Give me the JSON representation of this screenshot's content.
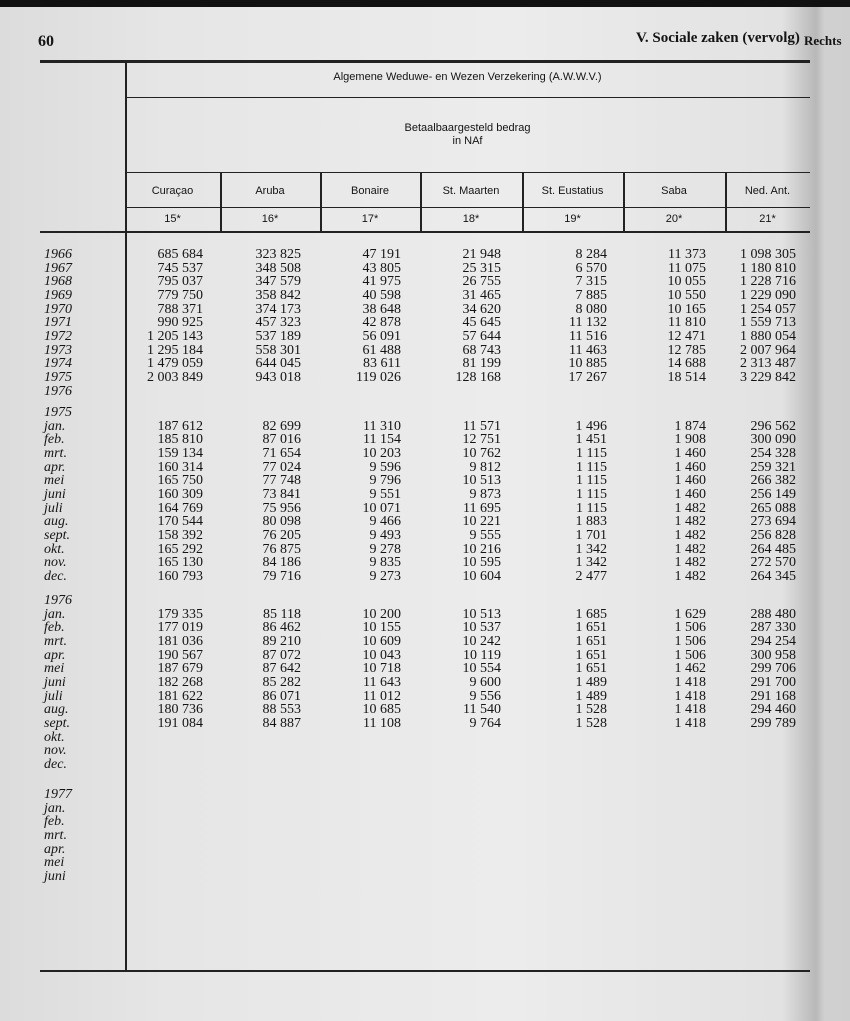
{
  "page_number": "60",
  "running_head": "V. Sociale zaken (vervolg)",
  "next_page_head": "Rechts",
  "table": {
    "title": "Algemene Weduwe- en Wezen Verzekering (A.W.W.V.)",
    "subtitle_line1": "Betaalbaargesteld bedrag",
    "subtitle_line2": "in NAf",
    "columns": [
      {
        "label": "Curaçao",
        "number": "15*"
      },
      {
        "label": "Aruba",
        "number": "16*"
      },
      {
        "label": "Bonaire",
        "number": "17*"
      },
      {
        "label": "St. Maarten",
        "number": "18*"
      },
      {
        "label": "St. Eustatius",
        "number": "19*"
      },
      {
        "label": "Saba",
        "number": "20*"
      },
      {
        "label": "Ned. Ant.",
        "number": "21*"
      }
    ],
    "sections": [
      {
        "heading": "",
        "rows": [
          {
            "label": "1966",
            "values": [
              "685 684",
              "323 825",
              "47 191",
              "21 948",
              "8 284",
              "11 373",
              "1 098 305"
            ]
          },
          {
            "label": "1967",
            "values": [
              "745 537",
              "348 508",
              "43 805",
              "25 315",
              "6 570",
              "11 075",
              "1 180 810"
            ]
          },
          {
            "label": "1968",
            "values": [
              "795 037",
              "347 579",
              "41 975",
              "26 755",
              "7 315",
              "10 055",
              "1 228 716"
            ]
          },
          {
            "label": "1969",
            "values": [
              "779 750",
              "358 842",
              "40 598",
              "31 465",
              "7 885",
              "10 550",
              "1 229 090"
            ]
          },
          {
            "label": "1970",
            "values": [
              "788 371",
              "374 173",
              "38 648",
              "34 620",
              "8 080",
              "10 165",
              "1 254 057"
            ]
          },
          {
            "label": "1971",
            "values": [
              "990 925",
              "457 323",
              "42 878",
              "45 645",
              "11 132",
              "11 810",
              "1 559 713"
            ]
          },
          {
            "label": "1972",
            "values": [
              "1 205 143",
              "537 189",
              "56 091",
              "57 644",
              "11 516",
              "12 471",
              "1 880 054"
            ]
          },
          {
            "label": "1973",
            "values": [
              "1 295 184",
              "558 301",
              "61 488",
              "68 743",
              "11 463",
              "12 785",
              "2 007 964"
            ]
          },
          {
            "label": "1974",
            "values": [
              "1 479 059",
              "644 045",
              "83 611",
              "81 199",
              "10 885",
              "14 688",
              "2 313 487"
            ]
          },
          {
            "label": "1975",
            "values": [
              "2 003 849",
              "943 018",
              "119 026",
              "128 168",
              "17 267",
              "18 514",
              "3 229 842"
            ]
          },
          {
            "label": "1976",
            "values": []
          }
        ]
      },
      {
        "heading": "1975",
        "rows": [
          {
            "label": "jan.",
            "values": [
              "187 612",
              "82 699",
              "11 310",
              "11 571",
              "1 496",
              "1 874",
              "296 562"
            ]
          },
          {
            "label": "feb.",
            "values": [
              "185 810",
              "87 016",
              "11 154",
              "12 751",
              "1 451",
              "1 908",
              "300 090"
            ]
          },
          {
            "label": "mrt.",
            "values": [
              "159 134",
              "71 654",
              "10 203",
              "10 762",
              "1 115",
              "1 460",
              "254 328"
            ]
          },
          {
            "label": "apr.",
            "values": [
              "160 314",
              "77 024",
              "9 596",
              "9 812",
              "1 115",
              "1 460",
              "259 321"
            ]
          },
          {
            "label": "mei",
            "values": [
              "165 750",
              "77 748",
              "9 796",
              "10 513",
              "1 115",
              "1 460",
              "266 382"
            ]
          },
          {
            "label": "juni",
            "values": [
              "160 309",
              "73 841",
              "9 551",
              "9 873",
              "1 115",
              "1 460",
              "256 149"
            ]
          },
          {
            "label": "juli",
            "values": [
              "164 769",
              "75 956",
              "10 071",
              "11 695",
              "1 115",
              "1 482",
              "265 088"
            ]
          },
          {
            "label": "aug.",
            "values": [
              "170 544",
              "80 098",
              "9 466",
              "10 221",
              "1 883",
              "1 482",
              "273 694"
            ]
          },
          {
            "label": "sept.",
            "values": [
              "158 392",
              "76 205",
              "9 493",
              "9 555",
              "1 701",
              "1 482",
              "256 828"
            ]
          },
          {
            "label": "okt.",
            "values": [
              "165 292",
              "76 875",
              "9 278",
              "10 216",
              "1 342",
              "1 482",
              "264 485"
            ]
          },
          {
            "label": "nov.",
            "values": [
              "165 130",
              "84 186",
              "9 835",
              "10 595",
              "1 342",
              "1 482",
              "272 570"
            ]
          },
          {
            "label": "dec.",
            "values": [
              "160 793",
              "79 716",
              "9 273",
              "10 604",
              "2 477",
              "1 482",
              "264 345"
            ]
          }
        ]
      },
      {
        "heading": "1976",
        "rows": [
          {
            "label": "jan.",
            "values": [
              "179 335",
              "85 118",
              "10 200",
              "10 513",
              "1 685",
              "1 629",
              "288 480"
            ]
          },
          {
            "label": "feb.",
            "values": [
              "177 019",
              "86 462",
              "10 155",
              "10 537",
              "1 651",
              "1 506",
              "287 330"
            ]
          },
          {
            "label": "mrt.",
            "values": [
              "181 036",
              "89 210",
              "10 609",
              "10 242",
              "1 651",
              "1 506",
              "294 254"
            ]
          },
          {
            "label": "apr.",
            "values": [
              "190 567",
              "87 072",
              "10 043",
              "10 119",
              "1 651",
              "1 506",
              "300 958"
            ]
          },
          {
            "label": "mei",
            "values": [
              "187 679",
              "87 642",
              "10 718",
              "10 554",
              "1 651",
              "1 462",
              "299 706"
            ]
          },
          {
            "label": "juni",
            "values": [
              "182 268",
              "85 282",
              "11 643",
              "9 600",
              "1 489",
              "1 418",
              "291 700"
            ]
          },
          {
            "label": "juli",
            "values": [
              "181 622",
              "86 071",
              "11 012",
              "9 556",
              "1 489",
              "1 418",
              "291 168"
            ]
          },
          {
            "label": "aug.",
            "values": [
              "180 736",
              "88 553",
              "10 685",
              "11 540",
              "1 528",
              "1 418",
              "294 460"
            ]
          },
          {
            "label": "sept.",
            "values": [
              "191 084",
              "84 887",
              "11 108",
              "9 764",
              "1 528",
              "1 418",
              "299 789"
            ]
          },
          {
            "label": "okt.",
            "values": []
          },
          {
            "label": "nov.",
            "values": []
          },
          {
            "label": "dec.",
            "values": []
          }
        ]
      },
      {
        "heading": "1977",
        "rows": [
          {
            "label": "jan.",
            "values": []
          },
          {
            "label": "feb.",
            "values": []
          },
          {
            "label": "mrt.",
            "values": []
          },
          {
            "label": "apr.",
            "values": []
          },
          {
            "label": "mei",
            "values": []
          },
          {
            "label": "juni",
            "values": []
          }
        ]
      }
    ]
  }
}
